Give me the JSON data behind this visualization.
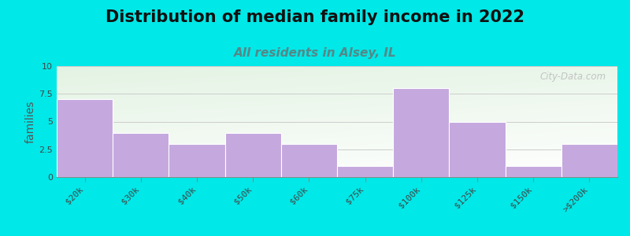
{
  "title": "Distribution of median family income in 2022",
  "subtitle": "All residents in Alsey, IL",
  "categories": [
    "$20k",
    "$30k",
    "$40k",
    "$50k",
    "$60k",
    "$75k",
    "$100k",
    "$125k",
    "$150k",
    ">$200k"
  ],
  "values": [
    7,
    4,
    3,
    4,
    3,
    1,
    8,
    5,
    1,
    3
  ],
  "bar_color": "#c4a8de",
  "bar_edgecolor": "#ffffff",
  "ylabel": "families",
  "ylim": [
    0,
    10
  ],
  "yticks": [
    0,
    2.5,
    5,
    7.5,
    10
  ],
  "background_color": "#00e8e8",
  "title_fontsize": 15,
  "subtitle_fontsize": 11,
  "subtitle_color": "#558888",
  "watermark": "City-Data.com",
  "grid_color": "#cccccc",
  "tick_label_fontsize": 8
}
